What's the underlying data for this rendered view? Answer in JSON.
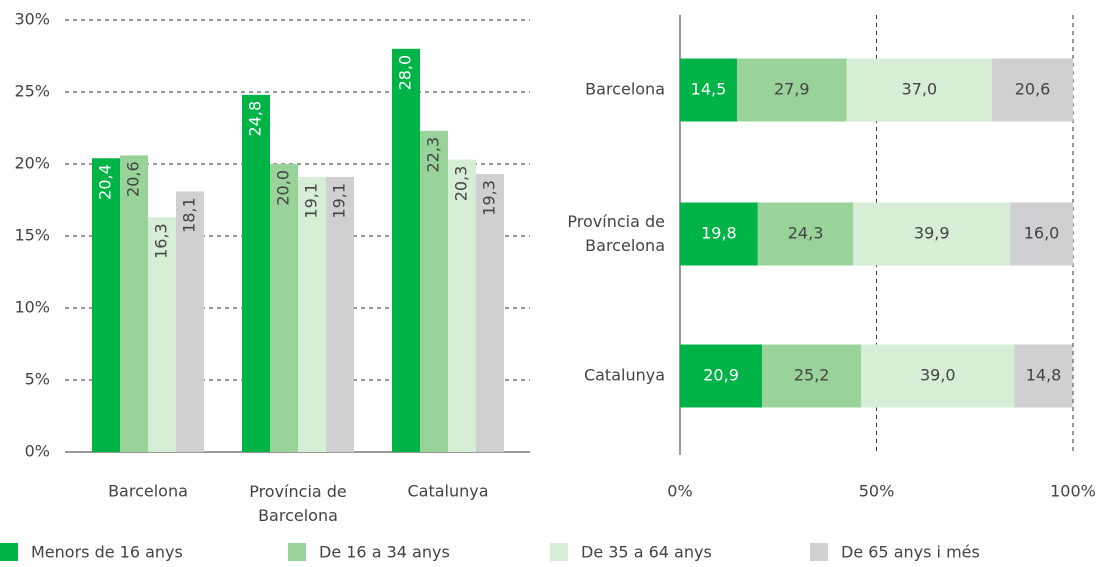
{
  "chart_data": [
    {
      "type": "bar",
      "categories": [
        "Barcelona",
        "Província de Barcelona",
        "Catalunya"
      ],
      "series": [
        {
          "name": "Menors de 16 anys",
          "color": "#00b347",
          "values": [
            20.4,
            24.8,
            28.0
          ],
          "value_labels": [
            "20,4",
            "24,8",
            "28,0"
          ]
        },
        {
          "name": "De 16 a 34 anys",
          "color": "#99d399",
          "values": [
            20.6,
            20.0,
            22.3
          ],
          "value_labels": [
            "20,6",
            "20,0",
            "22,3"
          ]
        },
        {
          "name": "De 35 a 64 anys",
          "color": "#d6edd6",
          "values": [
            16.3,
            19.1,
            20.3
          ],
          "value_labels": [
            "16,3",
            "19,1",
            "20,3"
          ]
        },
        {
          "name": "De 65 anys i més",
          "color": "#d0d0d3",
          "values": [
            18.1,
            19.1,
            19.3
          ],
          "value_labels": [
            "18,1",
            "19,1",
            "19,3"
          ]
        }
      ],
      "ylim": [
        0,
        30
      ],
      "yticks": [
        {
          "value": 0,
          "label": "0%"
        },
        {
          "value": 5,
          "label": "5%"
        },
        {
          "value": 10,
          "label": "10%"
        },
        {
          "value": 15,
          "label": "15%"
        },
        {
          "value": 20,
          "label": "20%"
        },
        {
          "value": 25,
          "label": "25%"
        },
        {
          "value": 30,
          "label": "30%"
        }
      ],
      "grid": true
    },
    {
      "type": "stacked_barh",
      "categories": [
        "Barcelona",
        "Província de Barcelona",
        "Catalunya"
      ],
      "series": [
        {
          "color": "#00b347",
          "values": [
            14.5,
            19.8,
            20.9
          ],
          "value_labels": [
            "14,5",
            "19,8",
            "20,9"
          ]
        },
        {
          "color": "#99d399",
          "values": [
            27.9,
            24.3,
            25.2
          ],
          "value_labels": [
            "27,9",
            "24,3",
            "25,2"
          ]
        },
        {
          "color": "#d6edd6",
          "values": [
            37.0,
            39.9,
            39.0
          ],
          "value_labels": [
            "37,0",
            "39,9",
            "39,0"
          ]
        },
        {
          "color": "#d0d0d3",
          "values": [
            20.6,
            16.0,
            14.8
          ],
          "value_labels": [
            "20,6",
            "16,0",
            "14,8"
          ]
        }
      ],
      "xlim": [
        0,
        100
      ],
      "xticks": [
        {
          "value": 0,
          "label": "0%"
        },
        {
          "value": 50,
          "label": "50%"
        },
        {
          "value": 100,
          "label": "100%"
        }
      ],
      "grid": true
    }
  ]
}
